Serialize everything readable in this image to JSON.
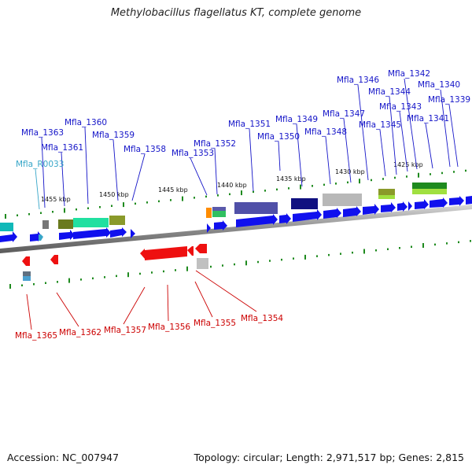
{
  "title": "Methylobacillus flagellatus KT, complete genome",
  "footer": {
    "accession": "Accession: NC_007947",
    "summary": "Topology: circular; Length: 2,971,517 bp; Genes: 2,815"
  },
  "colors": {
    "forward_label": "#1414c8",
    "reverse_label": "#cc0000",
    "rna_label": "#37a6c8",
    "forward_gene": "#1010ee",
    "reverse_gene": "#ee1010",
    "backbone": "#8a8a8a",
    "tick": "#1e8a1e"
  },
  "kbp_labels": [
    {
      "id": "1455",
      "text": "1455 kbp"
    },
    {
      "id": "1450",
      "text": "1450 kbp"
    },
    {
      "id": "1445",
      "text": "1445 kbp"
    },
    {
      "id": "1440",
      "text": "1440 kbp"
    },
    {
      "id": "1435",
      "text": "1435 kbp"
    },
    {
      "id": "1430",
      "text": "1430 kbp"
    },
    {
      "id": "1425",
      "text": "1425 kbp"
    }
  ],
  "forward_labels": [
    {
      "id": "mfla_1346",
      "text": "Mfla_1346"
    },
    {
      "id": "mfla_1342",
      "text": "Mfla_1342"
    },
    {
      "id": "mfla_1340",
      "text": "Mfla_1340"
    },
    {
      "id": "mfla_1344",
      "text": "Mfla_1344"
    },
    {
      "id": "mfla_1339",
      "text": "Mfla_1339"
    },
    {
      "id": "mfla_1343",
      "text": "Mfla_1343"
    },
    {
      "id": "mfla_1347",
      "text": "Mfla_1347"
    },
    {
      "id": "mfla_1341",
      "text": "Mfla_1341"
    },
    {
      "id": "mfla_1349",
      "text": "Mfla_1349"
    },
    {
      "id": "mfla_1345",
      "text": "Mfla_1345"
    },
    {
      "id": "mfla_1351",
      "text": "Mfla_1351"
    },
    {
      "id": "mfla_1360",
      "text": "Mfla_1360"
    },
    {
      "id": "mfla_1348",
      "text": "Mfla_1348"
    },
    {
      "id": "mfla_1350",
      "text": "Mfla_1350"
    },
    {
      "id": "mfla_1363",
      "text": "Mfla_1363"
    },
    {
      "id": "mfla_1359",
      "text": "Mfla_1359"
    },
    {
      "id": "mfla_1361",
      "text": "Mfla_1361"
    },
    {
      "id": "mfla_1352",
      "text": "Mfla_1352"
    },
    {
      "id": "mfla_1358",
      "text": "Mfla_1358"
    },
    {
      "id": "mfla_1353",
      "text": "Mfla_1353"
    }
  ],
  "rna_labels": [
    {
      "id": "mfla_r0033",
      "text": "Mfla_R0033"
    }
  ],
  "reverse_labels": [
    {
      "id": "mfla_1354",
      "text": "Mfla_1354"
    },
    {
      "id": "mfla_1355",
      "text": "Mfla_1355"
    },
    {
      "id": "mfla_1357",
      "text": "Mfla_1357"
    },
    {
      "id": "mfla_1356",
      "text": "Mfla_1356"
    },
    {
      "id": "mfla_1365",
      "text": "Mfla_1365"
    },
    {
      "id": "mfla_1362",
      "text": "Mfla_1362"
    }
  ]
}
